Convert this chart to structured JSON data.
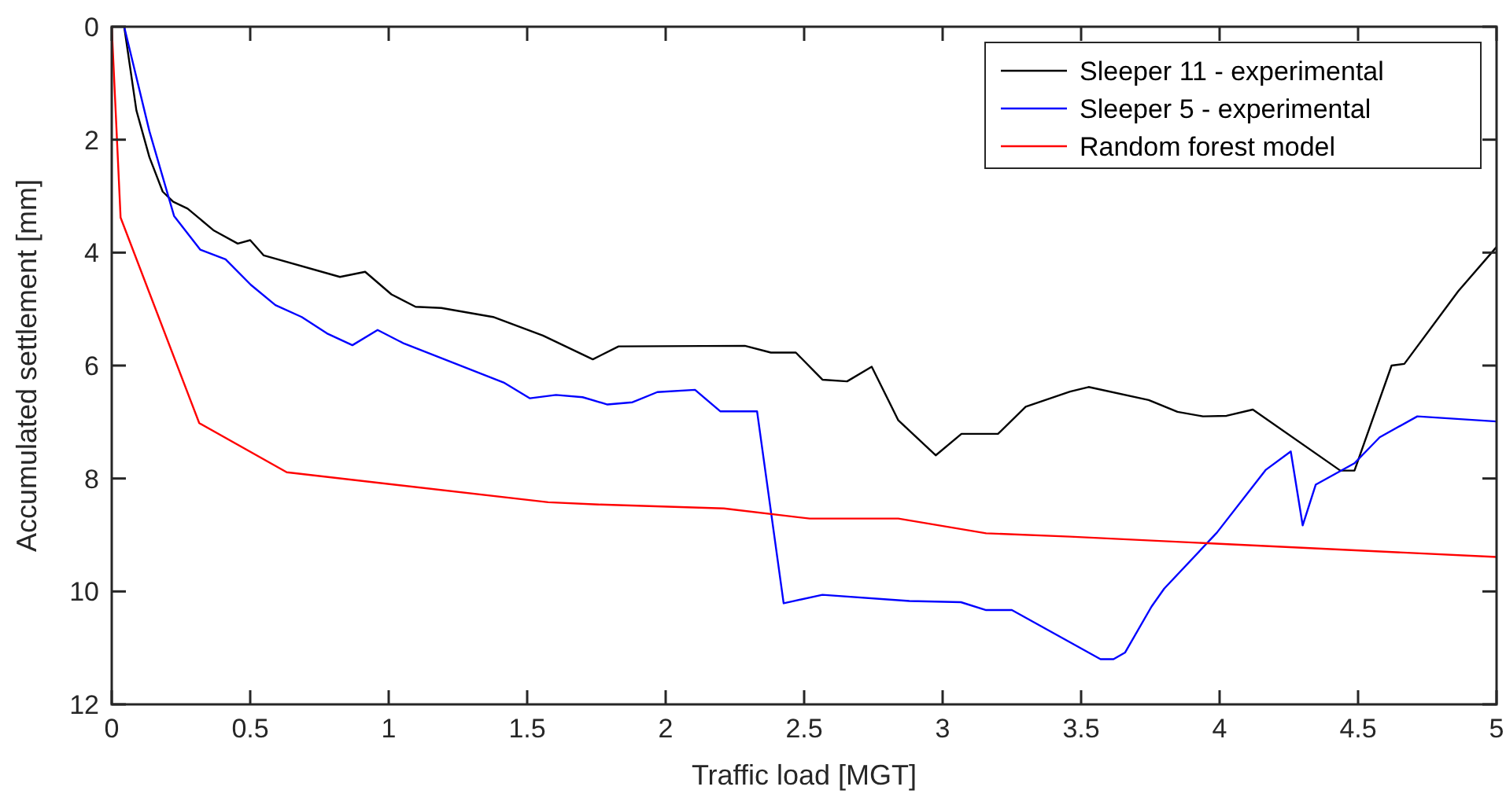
{
  "chart_data": {
    "type": "line",
    "xlabel": "Traffic load [MGT]",
    "ylabel": "Accumulated settlement [mm]",
    "xlim": [
      0,
      5
    ],
    "xticks": [
      0,
      0.5,
      1,
      1.5,
      2,
      2.5,
      3,
      3.5,
      4,
      4.5,
      5
    ],
    "ylim": [
      12,
      0
    ],
    "yticks": [
      0,
      2,
      4,
      6,
      8,
      10,
      12
    ],
    "grid": false,
    "legend": "top right",
    "line_style": "solid",
    "marker": "none",
    "series": [
      {
        "name": "Sleeper 11 - experimental",
        "color": "#000000",
        "x": [
          0.045,
          0.089,
          0.136,
          0.184,
          0.222,
          0.274,
          0.369,
          0.455,
          0.5,
          0.549,
          0.824,
          0.915,
          1.01,
          1.097,
          1.19,
          1.377,
          1.557,
          1.737,
          1.83,
          2.286,
          2.38,
          2.47,
          2.566,
          2.655,
          2.744,
          2.84,
          2.975,
          3.068,
          3.2,
          3.3,
          3.46,
          3.527,
          3.744,
          3.848,
          3.94,
          4.025,
          4.12,
          4.436,
          4.487,
          4.621,
          4.667,
          4.862,
          5
        ],
        "values": [
          0,
          1.48,
          2.31,
          2.92,
          3.1,
          3.22,
          3.61,
          3.84,
          3.78,
          4.05,
          4.43,
          4.34,
          4.74,
          4.96,
          4.98,
          5.14,
          5.47,
          5.89,
          5.66,
          5.65,
          5.77,
          5.77,
          6.25,
          6.28,
          6.02,
          6.97,
          7.59,
          7.21,
          7.21,
          6.73,
          6.46,
          6.38,
          6.61,
          6.82,
          6.9,
          6.89,
          6.78,
          7.86,
          7.86,
          6,
          5.97,
          4.68,
          3.9
        ]
      },
      {
        "name": "Sleeper 5 - experimental",
        "color": "#0000ff",
        "x": [
          0.045,
          0.136,
          0.225,
          0.32,
          0.411,
          0.502,
          0.591,
          0.686,
          0.777,
          0.869,
          0.96,
          1.055,
          1.415,
          1.51,
          1.604,
          1.7,
          1.79,
          1.88,
          1.97,
          2.106,
          2.197,
          2.33,
          2.426,
          2.566,
          2.88,
          3.066,
          3.157,
          3.25,
          3.46,
          3.57,
          3.617,
          3.659,
          3.754,
          3.8,
          3.99,
          4.166,
          4.257,
          4.3,
          4.347,
          4.487,
          4.578,
          4.714,
          5
        ],
        "values": [
          0,
          1.85,
          3.35,
          3.95,
          4.12,
          4.57,
          4.93,
          5.14,
          5.43,
          5.64,
          5.37,
          5.61,
          6.3,
          6.58,
          6.52,
          6.56,
          6.69,
          6.65,
          6.47,
          6.43,
          6.81,
          6.81,
          10.21,
          10.06,
          10.17,
          10.19,
          10.33,
          10.33,
          10.9,
          11.2,
          11.2,
          11.08,
          10.27,
          9.95,
          8.96,
          7.85,
          7.52,
          8.83,
          8.11,
          7.73,
          7.27,
          6.9,
          6.99
        ]
      },
      {
        "name": "Random forest model",
        "color": "#ff0000",
        "x": [
          0,
          0.032,
          0.316,
          0.632,
          1.576,
          1.756,
          2.21,
          2.52,
          2.84,
          3.157,
          3.46,
          5
        ],
        "values": [
          0,
          3.38,
          7.02,
          7.89,
          8.42,
          8.46,
          8.53,
          8.71,
          8.71,
          8.97,
          9.03,
          9.39
        ]
      }
    ]
  }
}
